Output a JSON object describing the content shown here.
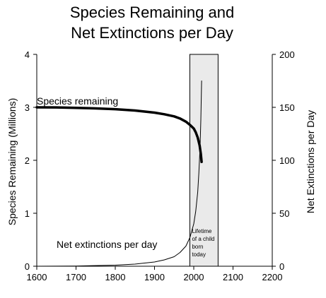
{
  "chart_data": {
    "type": "line",
    "title_lines": [
      "Species Remaining and",
      "Net Extinctions per Day"
    ],
    "xlabel": "",
    "ylabel_left": "Species Remaining (Millions)",
    "ylabel_right": "Net Extinctions per Day",
    "xlim": [
      1600,
      2200
    ],
    "ylim_left": [
      0,
      4
    ],
    "ylim_right": [
      0,
      200
    ],
    "x_ticks": [
      1600,
      1700,
      1800,
      1900,
      2000,
      2100,
      2200
    ],
    "y_left_ticks": [
      0,
      1,
      2,
      3,
      4
    ],
    "y_right_ticks": [
      0,
      50,
      100,
      150,
      200
    ],
    "grid": false,
    "shaded_region": {
      "x_range": [
        1990,
        2062
      ],
      "label": [
        "Lifetime",
        "of a child",
        "born",
        "today"
      ],
      "color": "#eaeaea"
    },
    "series": [
      {
        "name": "Species remaining",
        "axis": "left",
        "color": "#000000",
        "x": [
          1600,
          1650,
          1700,
          1750,
          1800,
          1850,
          1900,
          1925,
          1950,
          1965,
          1980,
          1990,
          2000,
          2005,
          2010,
          2015,
          2018,
          2020
        ],
        "y": [
          3.0,
          2.998,
          2.99,
          2.98,
          2.965,
          2.94,
          2.9,
          2.87,
          2.83,
          2.79,
          2.73,
          2.67,
          2.6,
          2.53,
          2.43,
          2.28,
          2.12,
          1.97
        ]
      },
      {
        "name": "Net extinctions per day",
        "axis": "right",
        "color": "#000000",
        "x": [
          1600,
          1700,
          1800,
          1850,
          1900,
          1925,
          1950,
          1965,
          1980,
          1990,
          2000,
          2005,
          2010,
          2013,
          2016,
          2018,
          2020
        ],
        "y": [
          0,
          0.2,
          1.0,
          2.0,
          4.0,
          6.0,
          9.0,
          13.0,
          19.0,
          27.0,
          40.0,
          52.0,
          70.0,
          88.0,
          112.0,
          138.0,
          175.0
        ]
      }
    ]
  },
  "labels": {
    "species_remaining": "Species remaining",
    "net_extinctions": "Net extinctions per day"
  }
}
